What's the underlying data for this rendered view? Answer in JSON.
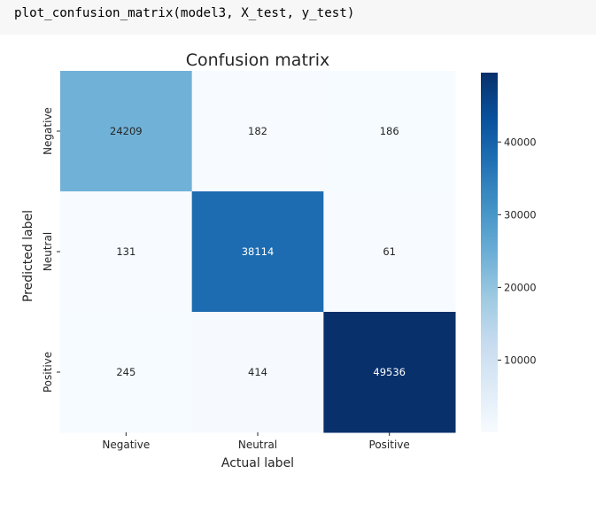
{
  "code": {
    "source": "plot_confusion_matrix(model3, X_test, y_test)"
  },
  "chart_data": {
    "type": "heatmap",
    "title": "Confusion matrix",
    "xlabel": "Actual label",
    "ylabel": "Predicted label",
    "x_categories": [
      "Negative",
      "Neutral",
      "Positive"
    ],
    "y_categories": [
      "Negative",
      "Neutral",
      "Positive"
    ],
    "values": [
      [
        24209,
        182,
        186
      ],
      [
        131,
        38114,
        61
      ],
      [
        245,
        414,
        49536
      ]
    ],
    "colormap": "Blues",
    "colorbar": {
      "min": 61,
      "max": 49536,
      "ticks": [
        10000,
        20000,
        30000,
        40000
      ],
      "tick_labels": [
        "10000",
        "20000",
        "30000",
        "40000"
      ]
    }
  }
}
